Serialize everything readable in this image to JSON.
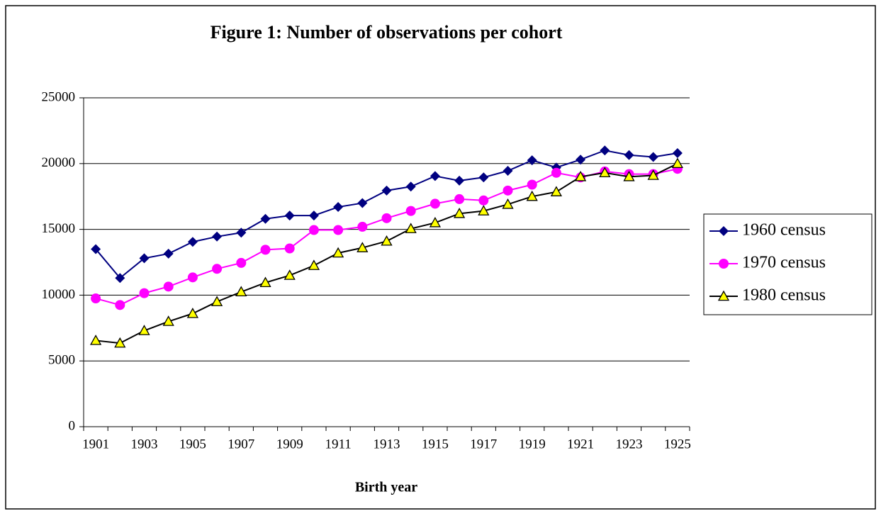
{
  "chart_data": {
    "type": "line",
    "title": "Figure 1: Number of observations per cohort",
    "x_label": "Birth year",
    "categories": [
      "1901",
      null,
      "1903",
      null,
      "1905",
      null,
      "1907",
      null,
      "1909",
      null,
      "1911",
      null,
      "1913",
      null,
      "1915",
      null,
      "1917",
      null,
      "1919",
      null,
      "1921",
      null,
      "1923",
      null,
      "1925"
    ],
    "series": [
      {
        "name": "1960 census",
        "color": "#000080",
        "marker": "diamond",
        "values": [
          13500,
          11300,
          12800,
          13150,
          14050,
          14450,
          14750,
          15800,
          16050,
          16050,
          16700,
          17000,
          17950,
          18250,
          19050,
          18700,
          18950,
          19450,
          20250,
          19700,
          20300,
          21000,
          20650,
          20500,
          20800
        ]
      },
      {
        "name": "1970 census",
        "color": "#ff00ff",
        "marker": "circle",
        "values": [
          9750,
          9250,
          10150,
          10650,
          11350,
          12000,
          12450,
          13450,
          13550,
          14950,
          14950,
          15200,
          15850,
          16400,
          16950,
          17300,
          17200,
          17950,
          18400,
          19300,
          18950,
          19400,
          19200,
          19200,
          19600
        ]
      },
      {
        "name": "1980 census",
        "color": "#000000",
        "marker": "triangle",
        "values": [
          6550,
          6350,
          7300,
          8000,
          8600,
          9500,
          10250,
          10950,
          11500,
          12250,
          13200,
          13600,
          14100,
          15050,
          15500,
          16200,
          16400,
          16900,
          17500,
          17850,
          19000,
          19300,
          19000,
          19100,
          20000
        ]
      }
    ],
    "ylim": [
      0,
      25000
    ],
    "yticks": [
      0,
      5000,
      10000,
      15000,
      20000,
      25000
    ],
    "grid": true,
    "legend": "right"
  }
}
